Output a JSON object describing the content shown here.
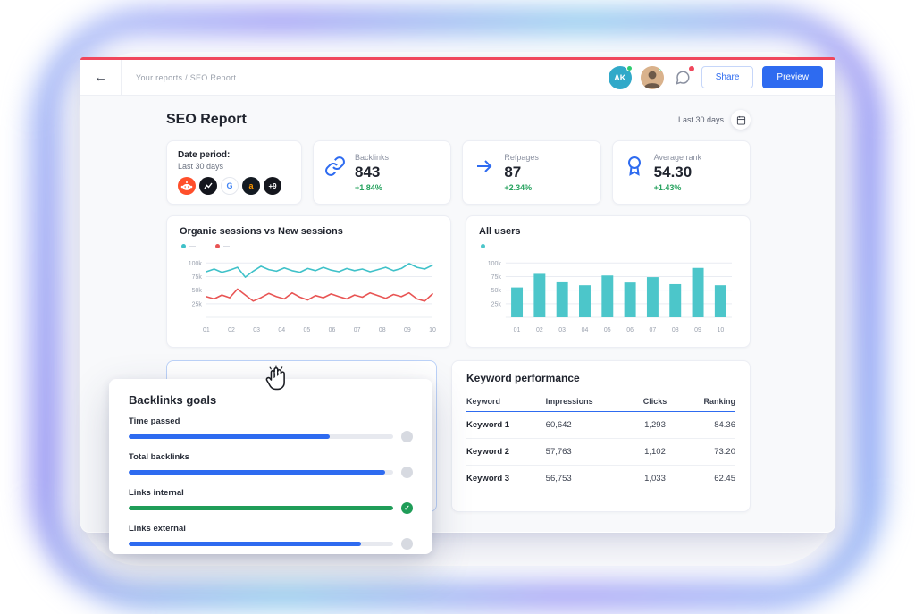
{
  "topbar": {
    "breadcrumb": "Your reports / SEO Report",
    "avatar_initials": "AK",
    "share_label": "Share",
    "preview_label": "Preview"
  },
  "page": {
    "title": "SEO Report",
    "date_range_label": "Last 30 days"
  },
  "stat_cards": {
    "date_period": {
      "label": "Date period:",
      "value": "Last 30 days",
      "source_icons": [
        "reddit-icon",
        "chart-icon",
        "google-icon",
        "amazon-icon"
      ],
      "google_letter": "G",
      "amazon_letter": "a",
      "more_count": "+9"
    },
    "metrics": [
      {
        "icon": "link-icon",
        "label": "Backlinks",
        "value": "843",
        "delta": "+1.84%"
      },
      {
        "icon": "arrow-right-icon",
        "label": "Refpages",
        "value": "87",
        "delta": "+2.34%"
      },
      {
        "icon": "medal-icon",
        "label": "Average rank",
        "value": "54.30",
        "delta": "+1.43%"
      }
    ]
  },
  "goals": {
    "title": "Backlinks goals",
    "items": [
      {
        "label": "Time passed",
        "percent": 76,
        "state": "in-progress"
      },
      {
        "label": "Total backlinks",
        "percent": 97,
        "state": "in-progress"
      },
      {
        "label": "Links internal",
        "percent": 100,
        "state": "done"
      },
      {
        "label": "Links external",
        "percent": 88,
        "state": "in-progress"
      }
    ]
  },
  "keyword_table": {
    "title": "Keyword performance",
    "columns": [
      "Keyword",
      "Impressions",
      "Clicks",
      "Ranking"
    ],
    "rows": [
      {
        "keyword": "Keyword 1",
        "impressions": "60,642",
        "clicks": "1,293",
        "ranking": "84.36"
      },
      {
        "keyword": "Keyword 2",
        "impressions": "57,763",
        "clicks": "1,102",
        "ranking": "73.20"
      },
      {
        "keyword": "Keyword 3",
        "impressions": "56,753",
        "clicks": "1,033",
        "ranking": "62.45"
      }
    ]
  },
  "colors": {
    "accent_blue": "#2e6bf0",
    "teal": "#45c5c9",
    "red_line": "#e85454",
    "green": "#27a35f",
    "window_top_border": "#f0475c",
    "reddit_orange": "#ff4f2b",
    "amazon_orange": "#ff9900"
  },
  "chart_data": [
    {
      "type": "line",
      "title": "Organic sessions vs New sessions",
      "x_tick_labels": [
        "01",
        "02",
        "03",
        "04",
        "05",
        "06",
        "07",
        "08",
        "09",
        "10"
      ],
      "y_ticks": [
        25,
        50,
        75,
        100
      ],
      "y_tick_labels": [
        "25k",
        "50k",
        "75k",
        "100k"
      ],
      "ylim": [
        0,
        112
      ],
      "unit": "k sessions",
      "legend_position": "top-left",
      "grid": true,
      "series": [
        {
          "name": "Organic sessions",
          "color": "#3fc1c9",
          "values": [
            84,
            89,
            83,
            87,
            92,
            74,
            85,
            94,
            88,
            85,
            91,
            86,
            83,
            90,
            86,
            92,
            87,
            84,
            90,
            86,
            89,
            84,
            88,
            92,
            86,
            90,
            99,
            92,
            89,
            96
          ]
        },
        {
          "name": "New sessions",
          "color": "#e85454",
          "values": [
            38,
            34,
            41,
            36,
            52,
            41,
            30,
            36,
            44,
            38,
            34,
            45,
            37,
            32,
            40,
            36,
            43,
            38,
            34,
            41,
            37,
            45,
            40,
            35,
            42,
            38,
            45,
            34,
            30,
            43
          ]
        }
      ]
    },
    {
      "type": "bar",
      "title": "All users",
      "categories": [
        "01",
        "02",
        "03",
        "04",
        "05",
        "06",
        "07",
        "08",
        "09",
        "10"
      ],
      "values": [
        55,
        80,
        66,
        59,
        77,
        64,
        74,
        61,
        91,
        59
      ],
      "y_ticks": [
        25,
        50,
        75,
        100
      ],
      "y_tick_labels": [
        "25k",
        "50k",
        "75k",
        "100k"
      ],
      "ylim": [
        0,
        112
      ],
      "unit": "k users",
      "grid": true,
      "bar_color": "#4cc6ca"
    }
  ]
}
